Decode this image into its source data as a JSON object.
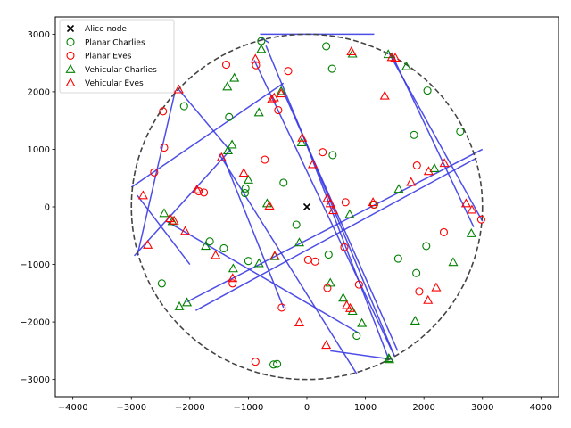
{
  "chart_data": {
    "type": "scatter",
    "title": "",
    "xlabel": "",
    "ylabel": "",
    "xlim": [
      -4300,
      4300
    ],
    "ylim": [
      -3300,
      3300
    ],
    "xticks": [
      -4000,
      -3000,
      -2000,
      -1000,
      0,
      1000,
      2000,
      3000,
      4000
    ],
    "yticks": [
      -3000,
      -2000,
      -1000,
      0,
      1000,
      2000,
      3000
    ],
    "grid": false,
    "legend_position": "top-left",
    "circle": {
      "center": [
        0,
        0
      ],
      "radius": 3000,
      "style": "dashed",
      "color": "#444444"
    },
    "roads": [
      {
        "from": [
          -3000,
          340
        ],
        "to": [
          -400,
          2150
        ]
      },
      {
        "from": [
          -800,
          3000
        ],
        "to": [
          1150,
          3000
        ]
      },
      {
        "from": [
          -800,
          2950
        ],
        "to": [
          -650,
          2850
        ]
      },
      {
        "from": [
          -2200,
          2050
        ],
        "to": [
          -1300,
          960
        ]
      },
      {
        "from": [
          -2250,
          2020
        ],
        "to": [
          -2900,
          -850
        ]
      },
      {
        "from": [
          -1300,
          1000
        ],
        "to": [
          -2950,
          -850
        ]
      },
      {
        "from": [
          1400,
          2680
        ],
        "to": [
          3000,
          -250
        ]
      },
      {
        "from": [
          -2900,
          200
        ],
        "to": [
          -2000,
          -1000
        ]
      },
      {
        "from": [
          -2050,
          -1650
        ],
        "to": [
          3000,
          1000
        ]
      },
      {
        "from": [
          -1900,
          -1800
        ],
        "to": [
          2900,
          850
        ]
      },
      {
        "from": [
          -1450,
          920
        ],
        "to": [
          -400,
          -1750
        ]
      },
      {
        "from": [
          -1500,
          920
        ],
        "to": [
          850,
          -2900
        ]
      },
      {
        "from": [
          -50,
          1200
        ],
        "to": [
          1400,
          -2650
        ]
      },
      {
        "from": [
          400,
          -2500
        ],
        "to": [
          1450,
          -2650
        ]
      },
      {
        "from": [
          -700,
          2800
        ],
        "to": [
          1500,
          -2600
        ]
      },
      {
        "from": [
          -2400,
          -250
        ],
        "to": [
          900,
          -2200
        ]
      },
      {
        "from": [
          -400,
          2000
        ],
        "to": [
          1550,
          -2500
        ]
      },
      {
        "from": [
          -900,
          2550
        ],
        "to": [
          1500,
          -2600
        ]
      },
      {
        "from": [
          1450,
          2650
        ],
        "to": [
          2850,
          -350
        ]
      }
    ],
    "series": [
      {
        "name": "Alice node",
        "marker": "x",
        "color": "#000000",
        "points": [
          [
            0,
            0
          ]
        ]
      },
      {
        "name": "Planar Charlies",
        "marker": "o",
        "color": "#008000",
        "points": [
          [
            -780,
            2880
          ],
          [
            330,
            2790
          ],
          [
            430,
            2400
          ],
          [
            -2100,
            1750
          ],
          [
            2060,
            2020
          ],
          [
            2620,
            1310
          ],
          [
            -1330,
            1560
          ],
          [
            -1050,
            320
          ],
          [
            -1060,
            240
          ],
          [
            -400,
            420
          ],
          [
            440,
            900
          ],
          [
            1830,
            1250
          ],
          [
            1150,
            40
          ],
          [
            -180,
            -310
          ],
          [
            -1660,
            -600
          ],
          [
            -1420,
            -720
          ],
          [
            -1000,
            -940
          ],
          [
            370,
            -830
          ],
          [
            1560,
            -900
          ],
          [
            2040,
            -680
          ],
          [
            1870,
            -1150
          ],
          [
            -2480,
            -1330
          ],
          [
            -570,
            -2740
          ],
          [
            -510,
            -2730
          ],
          [
            850,
            -2240
          ]
        ]
      },
      {
        "name": "Planar Eves",
        "marker": "o",
        "color": "#ff0000",
        "points": [
          [
            -1380,
            2470
          ],
          [
            -870,
            2460
          ],
          [
            -320,
            2360
          ],
          [
            -2460,
            1660
          ],
          [
            -490,
            1680
          ],
          [
            -2440,
            1030
          ],
          [
            -2610,
            600
          ],
          [
            -720,
            820
          ],
          [
            270,
            950
          ],
          [
            -1760,
            250
          ],
          [
            -1850,
            270
          ],
          [
            1880,
            720
          ],
          [
            660,
            80
          ],
          [
            1140,
            40
          ],
          [
            2980,
            -220
          ],
          [
            2340,
            -440
          ],
          [
            640,
            -700
          ],
          [
            20,
            -920
          ],
          [
            140,
            -950
          ],
          [
            1920,
            -1470
          ],
          [
            890,
            -1350
          ],
          [
            350,
            -1410
          ],
          [
            -1270,
            -1330
          ],
          [
            -430,
            -1750
          ],
          [
            -880,
            -2690
          ]
        ]
      },
      {
        "name": "Vehicular Charlies",
        "marker": "^",
        "color": "#008000",
        "points": [
          [
            -780,
            2740
          ],
          [
            780,
            2660
          ],
          [
            1390,
            2650
          ],
          [
            1700,
            2440
          ],
          [
            -1360,
            2090
          ],
          [
            -1240,
            2240
          ],
          [
            -440,
            2010
          ],
          [
            -820,
            1640
          ],
          [
            -1280,
            1080
          ],
          [
            -1350,
            980
          ],
          [
            -90,
            1120
          ],
          [
            2180,
            670
          ],
          [
            -1000,
            470
          ],
          [
            -680,
            60
          ],
          [
            730,
            -130
          ],
          [
            1570,
            310
          ],
          [
            -2440,
            -110
          ],
          [
            -2300,
            -250
          ],
          [
            -1730,
            -680
          ],
          [
            -550,
            -860
          ],
          [
            -130,
            -620
          ],
          [
            -1260,
            -1070
          ],
          [
            -820,
            -980
          ],
          [
            400,
            -1320
          ],
          [
            -2050,
            -1660
          ],
          [
            -2180,
            -1730
          ],
          [
            620,
            -1580
          ],
          [
            780,
            -1810
          ],
          [
            940,
            -2020
          ],
          [
            1850,
            -1980
          ],
          [
            2500,
            -960
          ],
          [
            2810,
            -460
          ],
          [
            1400,
            -2630
          ],
          [
            1410,
            -2650
          ]
        ]
      },
      {
        "name": "Vehicular Eves",
        "marker": "^",
        "color": "#ff0000",
        "points": [
          [
            760,
            2700
          ],
          [
            1450,
            2600
          ],
          [
            1510,
            2590
          ],
          [
            1330,
            1930
          ],
          [
            -2190,
            2040
          ],
          [
            -880,
            2570
          ],
          [
            -440,
            1970
          ],
          [
            -600,
            1870
          ],
          [
            -560,
            1900
          ],
          [
            -80,
            1200
          ],
          [
            100,
            740
          ],
          [
            -1460,
            860
          ],
          [
            -1080,
            590
          ],
          [
            2350,
            760
          ],
          [
            2080,
            620
          ],
          [
            -1880,
            300
          ],
          [
            1780,
            430
          ],
          [
            1130,
            80
          ],
          [
            2720,
            60
          ],
          [
            2820,
            -50
          ],
          [
            -2800,
            200
          ],
          [
            350,
            150
          ],
          [
            400,
            60
          ],
          [
            450,
            -60
          ],
          [
            -2340,
            -200
          ],
          [
            -2270,
            -240
          ],
          [
            -2080,
            -420
          ],
          [
            -640,
            20
          ],
          [
            -2720,
            -660
          ],
          [
            -1560,
            -840
          ],
          [
            -550,
            -850
          ],
          [
            -1270,
            -1240
          ],
          [
            2210,
            -1400
          ],
          [
            2070,
            -1620
          ],
          [
            680,
            -1710
          ],
          [
            740,
            -1760
          ],
          [
            -130,
            -2010
          ],
          [
            330,
            -2400
          ]
        ]
      }
    ]
  }
}
